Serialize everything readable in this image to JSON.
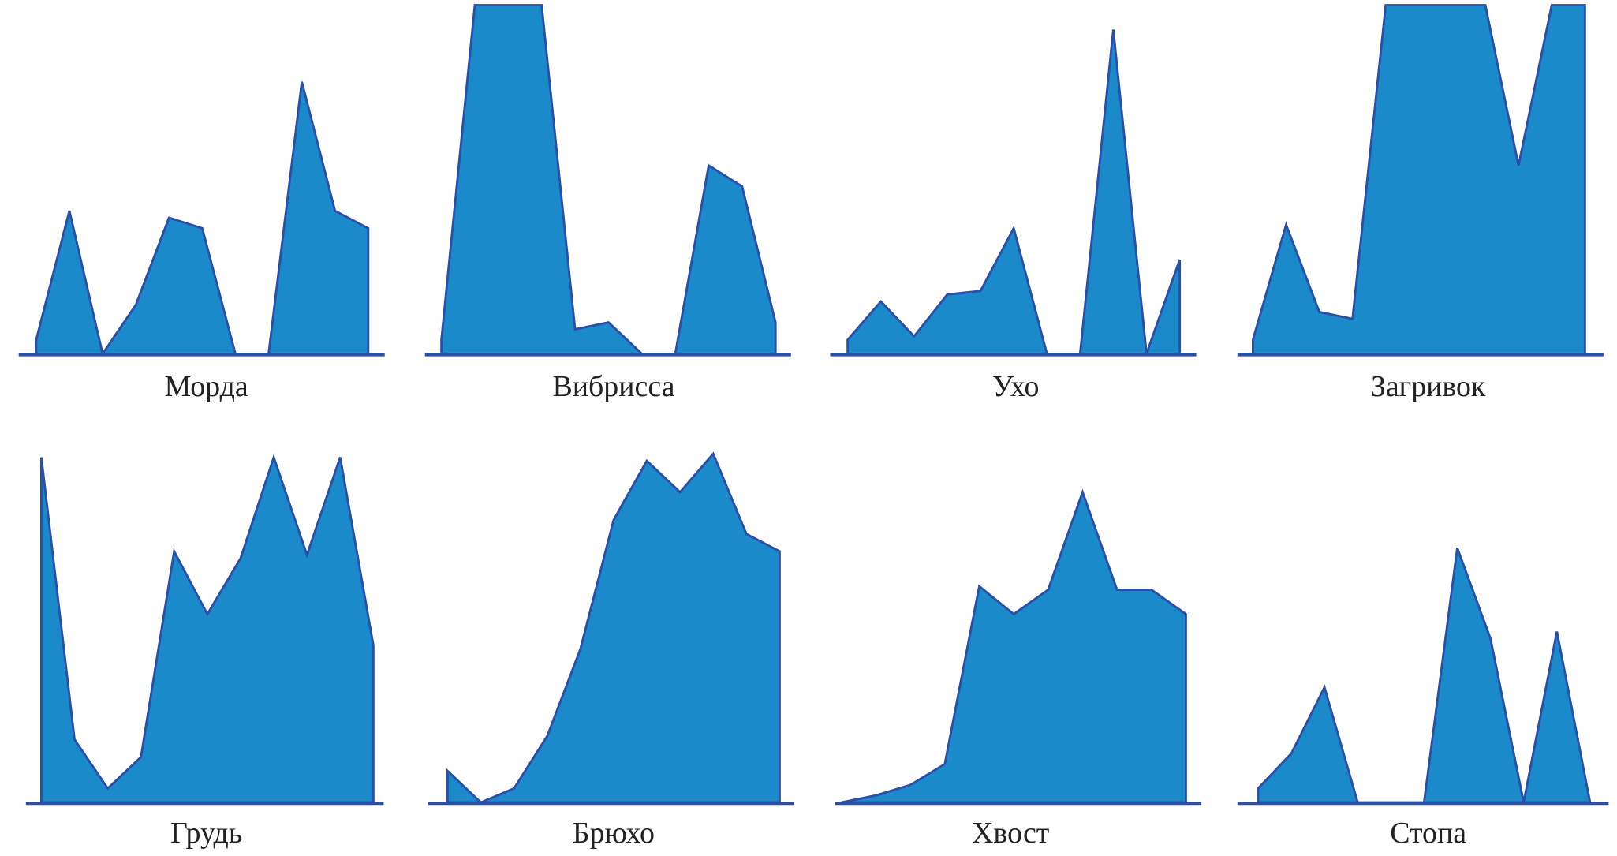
{
  "colors": {
    "fill": "#1a8acb",
    "stroke": "#2a4fa8",
    "axis": "#2a4fa8"
  },
  "chart_data": [
    {
      "type": "area",
      "title": "Морда",
      "values": [
        0.04,
        0.41,
        0,
        0.14,
        0.39,
        0.36,
        0,
        0,
        0.78,
        0.41,
        0.36
      ],
      "ylim": [
        0,
        1
      ],
      "grid": false
    },
    {
      "type": "area",
      "title": "Вибрисса",
      "values": [
        0.04,
        1.0,
        1.0,
        1.0,
        0.07,
        0.09,
        0,
        0,
        0.54,
        0.48,
        0.09
      ],
      "ylim": [
        0,
        1
      ],
      "grid": false
    },
    {
      "type": "area",
      "title": "Ухо",
      "values": [
        0.04,
        0.15,
        0.05,
        0.17,
        0.18,
        0.36,
        0,
        0,
        0.93,
        0,
        0.27
      ],
      "ylim": [
        0,
        1
      ],
      "grid": false
    },
    {
      "type": "area",
      "title": "Загривок",
      "values": [
        0.04,
        0.37,
        0.12,
        0.1,
        1.0,
        1.0,
        1.0,
        1.0,
        0.54,
        1.0,
        1.0
      ],
      "ylim": [
        0,
        1
      ],
      "grid": false
    },
    {
      "type": "area",
      "title": "Грудь",
      "values": [
        0.99,
        0.18,
        0.04,
        0.13,
        0.72,
        0.54,
        0.7,
        0.99,
        0.71,
        0.99,
        0.45
      ],
      "ylim": [
        0,
        1
      ],
      "grid": false
    },
    {
      "type": "area",
      "title": "Брюхо",
      "values": [
        0.09,
        0,
        0.04,
        0.19,
        0.44,
        0.81,
        0.98,
        0.89,
        1.0,
        0.77,
        0.72
      ],
      "ylim": [
        0,
        1
      ],
      "grid": false
    },
    {
      "type": "area",
      "title": "Хвост",
      "values": [
        0,
        0.02,
        0.05,
        0.11,
        0.62,
        0.54,
        0.61,
        0.89,
        0.61,
        0.61,
        0.54
      ],
      "ylim": [
        0,
        1
      ],
      "grid": false
    },
    {
      "type": "area",
      "title": "Стопа",
      "values": [
        0.04,
        0.14,
        0.33,
        0,
        0,
        0,
        0.73,
        0.47,
        0,
        0.49,
        0
      ],
      "ylim": [
        0,
        1
      ],
      "grid": false
    }
  ]
}
